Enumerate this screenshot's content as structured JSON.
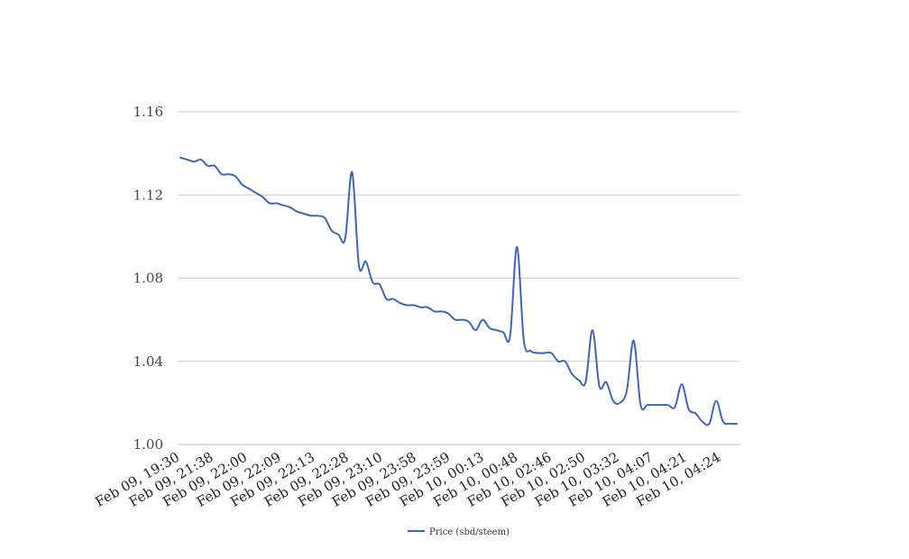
{
  "chart_data": {
    "type": "line",
    "title": "",
    "xlabel": "",
    "ylabel": "",
    "ylim": [
      1.0,
      1.16
    ],
    "yticks": [
      "1.00",
      "1.04",
      "1.08",
      "1.12",
      "1.16"
    ],
    "xtick_labels": [
      "Feb 09, 19:30",
      "Feb 09, 21:38",
      "Feb 09, 22:00",
      "Feb 09, 22:09",
      "Feb 09, 22:13",
      "Feb 09, 22:28",
      "Feb 09, 23:10",
      "Feb 09, 23:58",
      "Feb 09, 23:59",
      "Feb 10, 00:13",
      "Feb 10, 00:48",
      "Feb 10, 02:46",
      "Feb 10, 02:50",
      "Feb 10, 03:32",
      "Feb 10, 04:07",
      "Feb 10, 04:21",
      "Feb 10, 04:24"
    ],
    "grid": true,
    "legend_position": "bottom",
    "series": [
      {
        "name": "Price (sbd/steem)",
        "color": "#3d66b8",
        "values": [
          1.138,
          1.137,
          1.136,
          1.137,
          1.134,
          1.134,
          1.13,
          1.13,
          1.129,
          1.125,
          1.123,
          1.121,
          1.119,
          1.116,
          1.116,
          1.115,
          1.114,
          1.112,
          1.111,
          1.11,
          1.11,
          1.109,
          1.103,
          1.101,
          1.099,
          1.131,
          1.086,
          1.088,
          1.078,
          1.077,
          1.07,
          1.07,
          1.068,
          1.067,
          1.067,
          1.066,
          1.066,
          1.064,
          1.064,
          1.063,
          1.06,
          1.06,
          1.059,
          1.055,
          1.06,
          1.056,
          1.055,
          1.054,
          1.052,
          1.095,
          1.05,
          1.045,
          1.044,
          1.044,
          1.044,
          1.04,
          1.04,
          1.034,
          1.031,
          1.03,
          1.055,
          1.028,
          1.03,
          1.021,
          1.02,
          1.026,
          1.05,
          1.019,
          1.019,
          1.019,
          1.019,
          1.019,
          1.018,
          1.029,
          1.017,
          1.015,
          1.011,
          1.01,
          1.021,
          1.011,
          1.01,
          1.01
        ]
      }
    ]
  }
}
